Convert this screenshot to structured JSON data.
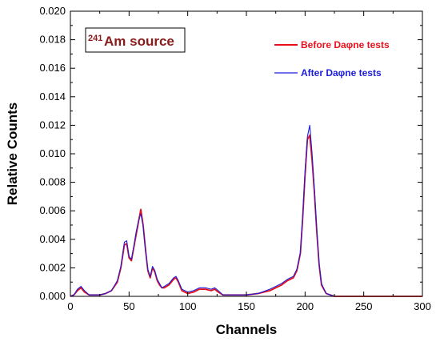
{
  "chart_data": {
    "type": "line",
    "title": "",
    "xlabel": "Channels",
    "ylabel": "Relative Counts",
    "xlim": [
      0,
      300
    ],
    "ylim": [
      0,
      0.02
    ],
    "x_ticks": [
      "0",
      "50",
      "100",
      "150",
      "200",
      "250",
      "300"
    ],
    "y_ticks": [
      "0.000",
      "0.002",
      "0.004",
      "0.006",
      "0.008",
      "0.010",
      "0.012",
      "0.014",
      "0.016",
      "0.018",
      "0.020"
    ],
    "grid": false,
    "legend_position": "top-right",
    "annotation": {
      "superscript": "241",
      "text": "Am source"
    },
    "series": [
      {
        "name": "Before Daφne tests",
        "color": "#e8101c",
        "x": [
          0,
          3,
          6,
          9,
          12,
          16,
          20,
          25,
          30,
          35,
          40,
          43,
          46,
          48,
          50,
          52,
          54,
          56,
          58,
          60,
          62,
          64,
          66,
          68,
          70,
          72,
          74,
          76,
          78,
          80,
          84,
          88,
          90,
          92,
          95,
          100,
          105,
          110,
          115,
          120,
          123,
          126,
          130,
          140,
          150,
          160,
          170,
          180,
          185,
          190,
          193,
          196,
          198,
          200,
          202,
          204,
          206,
          208,
          210,
          212,
          214,
          218,
          225,
          240,
          260,
          280,
          300
        ],
        "y": [
          0.0,
          0.0001,
          0.0004,
          0.0006,
          0.0003,
          0.0001,
          0.0001,
          0.0001,
          0.0002,
          0.0004,
          0.001,
          0.002,
          0.0036,
          0.0037,
          0.0027,
          0.0025,
          0.0034,
          0.0043,
          0.0052,
          0.0061,
          0.005,
          0.0033,
          0.0018,
          0.0013,
          0.002,
          0.0017,
          0.0011,
          0.0008,
          0.0006,
          0.0006,
          0.0008,
          0.0012,
          0.0013,
          0.001,
          0.0004,
          0.0002,
          0.0003,
          0.0005,
          0.0005,
          0.0004,
          0.0005,
          0.0003,
          0.0001,
          0.0001,
          0.0001,
          0.0002,
          0.0004,
          0.0008,
          0.0011,
          0.0013,
          0.0018,
          0.003,
          0.0055,
          0.0085,
          0.011,
          0.0113,
          0.0095,
          0.0072,
          0.0045,
          0.0022,
          0.0008,
          0.0002,
          0.0,
          0.0,
          0.0,
          0.0,
          0.0
        ]
      },
      {
        "name": "After Daφne tests",
        "color": "#1c1cdc",
        "x": [
          0,
          3,
          6,
          9,
          12,
          16,
          20,
          25,
          30,
          35,
          40,
          43,
          46,
          48,
          50,
          52,
          54,
          56,
          58,
          60,
          62,
          64,
          66,
          68,
          70,
          72,
          74,
          76,
          78,
          80,
          84,
          88,
          90,
          92,
          95,
          100,
          105,
          110,
          115,
          120,
          123,
          126,
          130,
          140,
          150,
          160,
          170,
          180,
          185,
          190,
          193,
          196,
          198,
          200,
          202,
          204,
          206,
          208,
          210,
          212,
          214,
          218,
          225,
          240,
          260,
          280,
          300
        ],
        "y": [
          0.0,
          0.0001,
          0.0005,
          0.0007,
          0.0004,
          0.0001,
          0.0001,
          0.0001,
          0.0002,
          0.0004,
          0.0011,
          0.0021,
          0.0038,
          0.0039,
          0.0028,
          0.0026,
          0.0035,
          0.0045,
          0.0053,
          0.0058,
          0.0049,
          0.0032,
          0.0019,
          0.0014,
          0.0021,
          0.0018,
          0.0012,
          0.0009,
          0.0006,
          0.0007,
          0.0009,
          0.0013,
          0.0014,
          0.0011,
          0.0005,
          0.0003,
          0.0004,
          0.0006,
          0.0006,
          0.0005,
          0.0006,
          0.0004,
          0.0001,
          0.0001,
          0.0001,
          0.0002,
          0.0005,
          0.0009,
          0.0012,
          0.0014,
          0.0019,
          0.0031,
          0.0057,
          0.0088,
          0.0112,
          0.012,
          0.01,
          0.0075,
          0.0047,
          0.0023,
          0.0009,
          0.0002,
          0.0,
          0.0,
          0.0,
          0.0,
          0.0
        ]
      }
    ]
  }
}
